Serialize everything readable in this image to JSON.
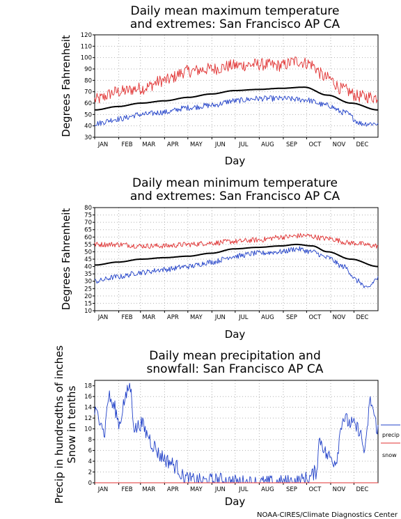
{
  "credit": "NOAA-CIRES/Climate Diagnostics Center",
  "colors": {
    "mean": "#000000",
    "max": "#e03030",
    "min": "#2040c8",
    "precip": "#2040c8",
    "snow": "#e03030",
    "grid": "#b0b0b0"
  },
  "chart_data": [
    {
      "type": "line",
      "title_lines": [
        "Daily mean maximum temperature",
        "and extremes: San Francisco AP CA"
      ],
      "ylabel": "Degrees Fahrenheit",
      "xlabel": "Day",
      "months": [
        "JAN",
        "FEB",
        "MAR",
        "APR",
        "MAY",
        "JUN",
        "JUL",
        "AUG",
        "SEP",
        "OCT",
        "NOV",
        "DEC"
      ],
      "ylim": [
        30,
        120
      ],
      "yticks": [
        30,
        40,
        50,
        60,
        70,
        80,
        90,
        100,
        110,
        120
      ],
      "grid": true,
      "series": [
        {
          "role": "max",
          "style": "noisy",
          "noise": 5.5,
          "knots": [
            [
              0,
              63
            ],
            [
              30,
              70
            ],
            [
              60,
              73
            ],
            [
              90,
              80
            ],
            [
              120,
              88
            ],
            [
              150,
              90
            ],
            [
              180,
              93
            ],
            [
              210,
              94
            ],
            [
              240,
              93
            ],
            [
              260,
              97
            ],
            [
              275,
              95
            ],
            [
              300,
              82
            ],
            [
              320,
              72
            ],
            [
              340,
              66
            ],
            [
              365,
              65
            ]
          ]
        },
        {
          "role": "mean",
          "style": "smooth",
          "knots": [
            [
              0,
              54
            ],
            [
              30,
              57
            ],
            [
              60,
              60
            ],
            [
              90,
              62
            ],
            [
              120,
              65
            ],
            [
              150,
              68
            ],
            [
              180,
              71
            ],
            [
              210,
              72
            ],
            [
              240,
              73
            ],
            [
              270,
              74
            ],
            [
              300,
              67
            ],
            [
              330,
              60
            ],
            [
              365,
              54
            ]
          ]
        },
        {
          "role": "min",
          "style": "noisy",
          "noise": 2.5,
          "knots": [
            [
              0,
              42
            ],
            [
              30,
              46
            ],
            [
              60,
              50
            ],
            [
              90,
              52
            ],
            [
              120,
              56
            ],
            [
              150,
              58
            ],
            [
              180,
              62
            ],
            [
              210,
              64
            ],
            [
              240,
              64
            ],
            [
              270,
              63
            ],
            [
              300,
              58
            ],
            [
              320,
              52
            ],
            [
              345,
              42
            ],
            [
              365,
              42
            ]
          ]
        }
      ]
    },
    {
      "type": "line",
      "title_lines": [
        "Daily mean minimum temperature",
        "and extremes: San Francisco AP CA"
      ],
      "ylabel": "Degrees Fahrenheit",
      "xlabel": "Day",
      "months": [
        "JAN",
        "FEB",
        "MAR",
        "APR",
        "MAY",
        "JUN",
        "JUL",
        "AUG",
        "SEP",
        "OCT",
        "NOV",
        "DEC"
      ],
      "ylim": [
        10,
        80
      ],
      "yticks": [
        10,
        15,
        20,
        25,
        30,
        35,
        40,
        45,
        50,
        55,
        60,
        65,
        70,
        75,
        80
      ],
      "grid": true,
      "series": [
        {
          "role": "max",
          "style": "noisy",
          "noise": 1.8,
          "knots": [
            [
              0,
              55
            ],
            [
              30,
              55
            ],
            [
              60,
              54
            ],
            [
              90,
              54
            ],
            [
              120,
              55
            ],
            [
              150,
              56
            ],
            [
              180,
              57
            ],
            [
              210,
              58
            ],
            [
              240,
              60
            ],
            [
              270,
              61
            ],
            [
              300,
              59
            ],
            [
              330,
              56
            ],
            [
              365,
              54
            ]
          ]
        },
        {
          "role": "mean",
          "style": "smooth",
          "knots": [
            [
              0,
              41
            ],
            [
              30,
              43
            ],
            [
              60,
              45
            ],
            [
              90,
              46
            ],
            [
              120,
              47
            ],
            [
              150,
              49
            ],
            [
              180,
              52
            ],
            [
              210,
              53
            ],
            [
              240,
              54
            ],
            [
              260,
              55
            ],
            [
              280,
              54
            ],
            [
              300,
              50
            ],
            [
              330,
              45
            ],
            [
              365,
              40
            ]
          ]
        },
        {
          "role": "min",
          "style": "noisy",
          "noise": 1.8,
          "knots": [
            [
              0,
              30
            ],
            [
              30,
              33
            ],
            [
              60,
              36
            ],
            [
              90,
              38
            ],
            [
              120,
              40
            ],
            [
              150,
              43
            ],
            [
              180,
              47
            ],
            [
              210,
              49
            ],
            [
              240,
              50
            ],
            [
              260,
              52
            ],
            [
              280,
              50
            ],
            [
              300,
              46
            ],
            [
              320,
              40
            ],
            [
              340,
              30
            ],
            [
              350,
              25
            ],
            [
              365,
              32
            ]
          ]
        }
      ]
    },
    {
      "type": "line",
      "title_lines": [
        "Daily mean precipitation and",
        "snowfall: San Francisco AP CA"
      ],
      "ylabel_lines": [
        "Precip in hundredths of inches",
        "Snow in tenths"
      ],
      "xlabel": "Day",
      "months": [
        "JAN",
        "FEB",
        "MAR",
        "APR",
        "MAY",
        "JUN",
        "JUL",
        "AUG",
        "SEP",
        "OCT",
        "NOV",
        "DEC"
      ],
      "ylim": [
        0,
        19
      ],
      "yticks": [
        0,
        2,
        4,
        6,
        8,
        10,
        12,
        14,
        16,
        18
      ],
      "grid": true,
      "legend": {
        "placement": "right",
        "entries": [
          {
            "role": "precip",
            "label": "precip"
          },
          {
            "role": "snow",
            "label": "snow"
          }
        ]
      },
      "series": [
        {
          "role": "precip",
          "style": "noisy",
          "noise": 1.4,
          "knots": [
            [
              0,
              13
            ],
            [
              8,
              12
            ],
            [
              12,
              9
            ],
            [
              18,
              16
            ],
            [
              25,
              14
            ],
            [
              32,
              11
            ],
            [
              38,
              15
            ],
            [
              45,
              18
            ],
            [
              52,
              10
            ],
            [
              60,
              11
            ],
            [
              68,
              9
            ],
            [
              75,
              7
            ],
            [
              85,
              5
            ],
            [
              95,
              4
            ],
            [
              105,
              3
            ],
            [
              115,
              1
            ],
            [
              125,
              0.5
            ],
            [
              140,
              0.3
            ],
            [
              160,
              0.5
            ],
            [
              175,
              0.2
            ],
            [
              200,
              0
            ],
            [
              230,
              0
            ],
            [
              260,
              0.2
            ],
            [
              275,
              0.8
            ],
            [
              285,
              2
            ],
            [
              290,
              8
            ],
            [
              300,
              5
            ],
            [
              310,
              4
            ],
            [
              320,
              12
            ],
            [
              330,
              11
            ],
            [
              340,
              10
            ],
            [
              348,
              6
            ],
            [
              355,
              15
            ],
            [
              365,
              10
            ]
          ]
        },
        {
          "role": "snow",
          "style": "flat",
          "knots": [
            [
              0,
              0
            ],
            [
              365,
              0
            ]
          ]
        }
      ]
    }
  ]
}
